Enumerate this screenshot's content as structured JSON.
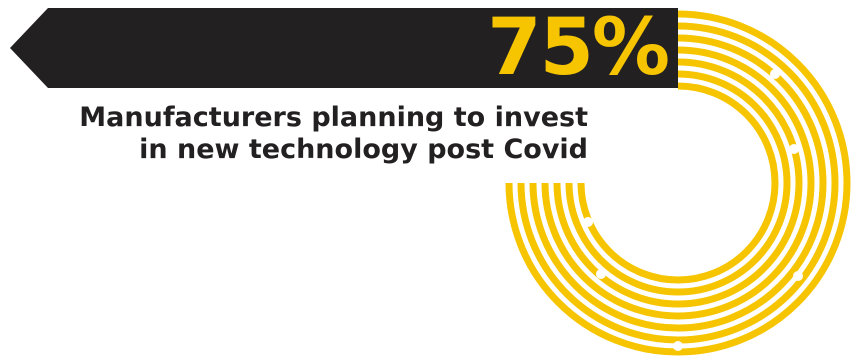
{
  "infographic": {
    "stat_value": "75%",
    "description_lines": [
      "Manufacturers planning to invest",
      "in new technology post Covid"
    ]
  },
  "colors": {
    "accent_yellow": "#f6c500",
    "banner_dark": "#222021",
    "background": "#ffffff",
    "ring_gap": "#ffffff"
  }
}
